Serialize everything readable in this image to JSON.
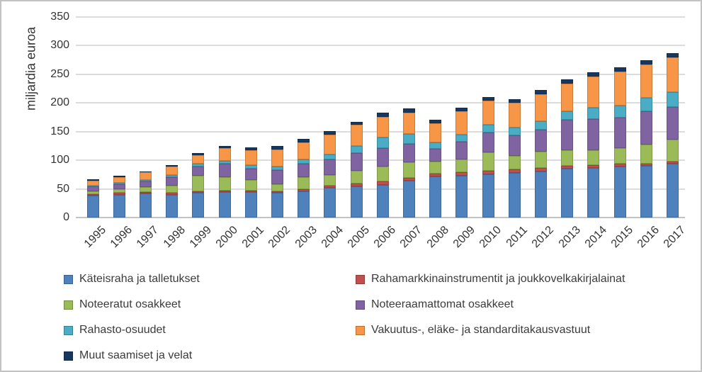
{
  "chart_data": {
    "type": "bar",
    "stacked": true,
    "ylabel": "miljardia euroa",
    "ylim": [
      0,
      350
    ],
    "ytick_step": 50,
    "y_ticks": [
      0,
      50,
      100,
      150,
      200,
      250,
      300,
      350
    ],
    "grid": true,
    "legend_position": "bottom",
    "categories": [
      "1995",
      "1996",
      "1997",
      "1998",
      "1999",
      "2000",
      "2001",
      "2002",
      "2003",
      "2004",
      "2005",
      "2006",
      "2007",
      "2008",
      "2009",
      "2010",
      "2011",
      "2012",
      "2013",
      "2014",
      "2015",
      "2016",
      "2017"
    ],
    "series": [
      {
        "name": "Käteisraha ja talletukset",
        "color": "#4F81BD",
        "values": [
          38,
          40,
          42,
          40,
          43,
          44,
          44,
          43,
          46,
          52,
          55,
          57,
          64,
          72,
          73,
          76,
          78,
          80,
          85,
          86,
          89,
          90,
          94
        ]
      },
      {
        "name": "Rahamarkkinainstrumentit ja joukkovelkakirjalainat",
        "color": "#C0504D",
        "values": [
          3,
          3,
          3,
          3,
          2.5,
          2.5,
          3,
          3,
          3.5,
          3.5,
          4.5,
          6,
          5,
          5,
          6,
          6,
          6,
          7,
          5.5,
          5.5,
          5.5,
          4,
          3.5
        ]
      },
      {
        "name": "Noteeratut osakkeet",
        "color": "#9BBB59",
        "values": [
          5,
          6,
          8,
          13,
          27,
          23.5,
          18.5,
          12.5,
          20.5,
          19,
          22,
          26.5,
          28,
          20.5,
          22,
          32,
          24,
          28,
          27,
          25.5,
          26.5,
          33,
          38
        ]
      },
      {
        "name": "Noteeraamattomat osakkeet",
        "color": "#8064A2",
        "values": [
          8.5,
          9.5,
          10,
          15,
          17,
          24.5,
          19.5,
          24,
          23.5,
          27,
          31,
          32,
          32,
          22,
          31,
          34,
          35.5,
          38.5,
          53,
          55.5,
          53.5,
          58,
          57.5
        ]
      },
      {
        "name": "Rahasto-osuudet",
        "color": "#4BACC6",
        "values": [
          1,
          1.5,
          2,
          3,
          4,
          4,
          6,
          6,
          7.5,
          8.5,
          13,
          18.5,
          16.5,
          11,
          13,
          14.5,
          13,
          15,
          15,
          19.5,
          21.5,
          24.5,
          26
        ]
      },
      {
        "name": "Vakuutus-, eläke- ja standarditakausvastuut",
        "color": "#F79646",
        "values": [
          9,
          10.5,
          14,
          15.5,
          15.5,
          23,
          26,
          30,
          30,
          35,
          36,
          36,
          38,
          34,
          41,
          42,
          43.5,
          47,
          48,
          53.5,
          59,
          57.5,
          61
        ]
      },
      {
        "name": "Muut saamiset ja velat",
        "color": "#17375E",
        "values": [
          2,
          2.5,
          1.5,
          2.5,
          3,
          3.5,
          5.5,
          6,
          6,
          5.5,
          5.5,
          6.5,
          7.5,
          6,
          5.5,
          6,
          6,
          7.5,
          7.5,
          7.5,
          7,
          7.5,
          7
        ]
      }
    ]
  }
}
